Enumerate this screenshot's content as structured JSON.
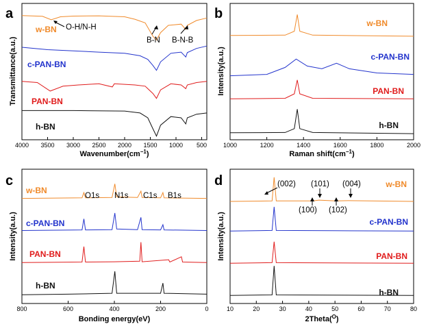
{
  "colors": {
    "w-BN": "#f08a2a",
    "c-PAN-BN": "#2233cc",
    "PAN-BN": "#e01b1b",
    "h-BN": "#111111"
  },
  "chart_data": [
    {
      "panel": "a",
      "type": "line",
      "xlabel": "Wavenumber(cm",
      "xlabel_sup": "−1",
      "xlabel_end": ")",
      "ylabel": "Transmittance(a.u.)",
      "xlim": [
        4000,
        400
      ],
      "xticks": [
        4000,
        3500,
        3000,
        2500,
        2000,
        1500,
        1000,
        500
      ],
      "annotations": [
        "O-H/N-H",
        "B-N",
        "B-N-B"
      ],
      "series": [
        {
          "name": "w-BN",
          "offset": 4.25,
          "points": [
            [
              4000,
              0.45
            ],
            [
              3600,
              0.42
            ],
            [
              3430,
              0.28
            ],
            [
              3250,
              0.4
            ],
            [
              3000,
              0.43
            ],
            [
              2500,
              0.44
            ],
            [
              2000,
              0.4
            ],
            [
              1800,
              0.3
            ],
            [
              1600,
              0.15
            ],
            [
              1450,
              -0.4
            ],
            [
              1380,
              -0.55
            ],
            [
              1300,
              -0.25
            ],
            [
              1150,
              0.05
            ],
            [
              900,
              0.1
            ],
            [
              810,
              -0.12
            ],
            [
              780,
              0.05
            ],
            [
              600,
              0.25
            ],
            [
              400,
              0.35
            ]
          ]
        },
        {
          "name": "c-PAN-BN",
          "offset": 3.0,
          "points": [
            [
              4000,
              0.4
            ],
            [
              3500,
              0.3
            ],
            [
              3000,
              0.25
            ],
            [
              2500,
              0.2
            ],
            [
              2000,
              0.15
            ],
            [
              1700,
              0.05
            ],
            [
              1550,
              -0.1
            ],
            [
              1450,
              -0.35
            ],
            [
              1380,
              -0.55
            ],
            [
              1300,
              -0.2
            ],
            [
              1100,
              0.15
            ],
            [
              900,
              0.2
            ],
            [
              810,
              0.0
            ],
            [
              780,
              0.18
            ],
            [
              600,
              0.35
            ],
            [
              400,
              0.45
            ]
          ]
        },
        {
          "name": "PAN-BN",
          "offset": 1.85,
          "points": [
            [
              4000,
              0.15
            ],
            [
              3700,
              0.1
            ],
            [
              3450,
              -0.25
            ],
            [
              3200,
              -0.05
            ],
            [
              2900,
              0.0
            ],
            [
              2500,
              0.05
            ],
            [
              2240,
              -0.08
            ],
            [
              2200,
              0.05
            ],
            [
              1800,
              0.0
            ],
            [
              1600,
              -0.05
            ],
            [
              1450,
              -0.35
            ],
            [
              1380,
              -0.55
            ],
            [
              1300,
              -0.2
            ],
            [
              1100,
              0.05
            ],
            [
              900,
              0.0
            ],
            [
              810,
              -0.15
            ],
            [
              780,
              0.0
            ],
            [
              600,
              0.1
            ],
            [
              400,
              0.15
            ]
          ]
        },
        {
          "name": "h-BN",
          "offset": 0.6,
          "points": [
            [
              4000,
              0.2
            ],
            [
              3000,
              0.2
            ],
            [
              2000,
              0.18
            ],
            [
              1700,
              0.1
            ],
            [
              1550,
              -0.1
            ],
            [
              1450,
              -0.55
            ],
            [
              1380,
              -0.85
            ],
            [
              1300,
              -0.4
            ],
            [
              1100,
              -0.05
            ],
            [
              900,
              -0.1
            ],
            [
              810,
              -0.35
            ],
            [
              780,
              -0.1
            ],
            [
              600,
              0.05
            ],
            [
              400,
              0.1
            ]
          ]
        }
      ]
    },
    {
      "panel": "b",
      "type": "line",
      "xlabel": "Raman shift(cm",
      "xlabel_sup": "−1",
      "xlabel_end": ")",
      "ylabel": "Intensity(a.u.)",
      "xlim": [
        1000,
        2000
      ],
      "xticks": [
        1000,
        1200,
        1400,
        1600,
        1800,
        2000
      ],
      "series": [
        {
          "name": "w-BN",
          "offset": 3.6,
          "points": [
            [
              1000,
              0.05
            ],
            [
              1300,
              0.06
            ],
            [
              1350,
              0.2
            ],
            [
              1366,
              0.8
            ],
            [
              1380,
              0.2
            ],
            [
              1450,
              0.06
            ],
            [
              2000,
              0.02
            ]
          ]
        },
        {
          "name": "c-PAN-BN",
          "offset": 2.2,
          "points": [
            [
              1000,
              0.0
            ],
            [
              1200,
              0.05
            ],
            [
              1300,
              0.3
            ],
            [
              1360,
              0.6
            ],
            [
              1420,
              0.35
            ],
            [
              1500,
              0.25
            ],
            [
              1580,
              0.45
            ],
            [
              1650,
              0.25
            ],
            [
              1800,
              0.1
            ],
            [
              2000,
              0.05
            ]
          ]
        },
        {
          "name": "PAN-BN",
          "offset": 1.35,
          "points": [
            [
              1000,
              0.02
            ],
            [
              1300,
              0.04
            ],
            [
              1350,
              0.2
            ],
            [
              1366,
              0.7
            ],
            [
              1380,
              0.2
            ],
            [
              1450,
              0.04
            ],
            [
              2000,
              0.02
            ]
          ]
        },
        {
          "name": "h-BN",
          "offset": 0.1,
          "points": [
            [
              1000,
              0.05
            ],
            [
              1300,
              0.06
            ],
            [
              1350,
              0.2
            ],
            [
              1366,
              0.9
            ],
            [
              1380,
              0.2
            ],
            [
              1450,
              0.06
            ],
            [
              2000,
              0.02
            ]
          ]
        }
      ]
    },
    {
      "panel": "c",
      "type": "line",
      "xlabel": "Bonding energy(eV)",
      "ylabel": "Intensity(a.u.)",
      "xlim": [
        800,
        0
      ],
      "xticks": [
        800,
        600,
        400,
        200,
        0
      ],
      "annotations": [
        "O1s",
        "N1s",
        "C1s",
        "B1s"
      ],
      "series": [
        {
          "name": "w-BN",
          "offset": 3.4,
          "points": [
            [
              800,
              0.0
            ],
            [
              540,
              0.02
            ],
            [
              532,
              0.2
            ],
            [
              525,
              0.02
            ],
            [
              410,
              0.03
            ],
            [
              398,
              0.5
            ],
            [
              390,
              0.05
            ],
            [
              300,
              0.03
            ],
            [
              285,
              0.25
            ],
            [
              280,
              0.03
            ],
            [
              200,
              0.02
            ],
            [
              190,
              0.2
            ],
            [
              185,
              0.02
            ],
            [
              0,
              0.0
            ]
          ]
        },
        {
          "name": "c-PAN-BN",
          "offset": 2.3,
          "points": [
            [
              800,
              0.0
            ],
            [
              540,
              0.02
            ],
            [
              532,
              0.4
            ],
            [
              525,
              0.02
            ],
            [
              410,
              0.03
            ],
            [
              398,
              0.6
            ],
            [
              390,
              0.05
            ],
            [
              300,
              0.03
            ],
            [
              285,
              0.45
            ],
            [
              280,
              0.03
            ],
            [
              200,
              0.02
            ],
            [
              190,
              0.2
            ],
            [
              185,
              0.02
            ],
            [
              0,
              0.0
            ]
          ]
        },
        {
          "name": "PAN-BN",
          "offset": 1.2,
          "points": [
            [
              800,
              0.0
            ],
            [
              540,
              0.02
            ],
            [
              532,
              0.55
            ],
            [
              525,
              0.02
            ],
            [
              400,
              0.03
            ],
            [
              290,
              0.05
            ],
            [
              285,
              0.7
            ],
            [
              280,
              0.03
            ],
            [
              165,
              0.1
            ],
            [
              160,
              0.02
            ],
            [
              110,
              0.2
            ],
            [
              105,
              0.02
            ],
            [
              0,
              0.0
            ]
          ]
        },
        {
          "name": "h-BN",
          "offset": 0.1,
          "points": [
            [
              800,
              0.0
            ],
            [
              600,
              0.02
            ],
            [
              410,
              0.05
            ],
            [
              398,
              0.8
            ],
            [
              390,
              0.05
            ],
            [
              200,
              0.05
            ],
            [
              190,
              0.4
            ],
            [
              185,
              0.05
            ],
            [
              0,
              0.02
            ]
          ]
        }
      ]
    },
    {
      "panel": "d",
      "type": "line",
      "xlabel": "2Theta(",
      "xlabel_sup": "O",
      "xlabel_end": ")",
      "ylabel": "Intensity(a.u.)",
      "xlim": [
        10,
        80
      ],
      "xticks": [
        10,
        20,
        30,
        40,
        50,
        60,
        70,
        80
      ],
      "annotations": [
        "(002)",
        "(101)",
        "(004)",
        "(100)",
        "(102)"
      ],
      "series": [
        {
          "name": "w-BN",
          "offset": 3.6,
          "points": [
            [
              10,
              0.0
            ],
            [
              26,
              0.02
            ],
            [
              26.8,
              0.9
            ],
            [
              27.6,
              0.02
            ],
            [
              41.6,
              0.02
            ],
            [
              43.9,
              0.05
            ],
            [
              50.2,
              0.02
            ],
            [
              55.2,
              0.03
            ],
            [
              80,
              0.0
            ]
          ]
        },
        {
          "name": "c-PAN-BN",
          "offset": 2.5,
          "points": [
            [
              10,
              0.0
            ],
            [
              26,
              0.02
            ],
            [
              26.8,
              0.9
            ],
            [
              27.6,
              0.02
            ],
            [
              50,
              0.01
            ],
            [
              80,
              0.0
            ]
          ]
        },
        {
          "name": "PAN-BN",
          "offset": 1.3,
          "points": [
            [
              10,
              0.0
            ],
            [
              26,
              0.02
            ],
            [
              26.8,
              0.8
            ],
            [
              27.6,
              0.02
            ],
            [
              80,
              0.0
            ]
          ]
        },
        {
          "name": "h-BN",
          "offset": 0.1,
          "points": [
            [
              10,
              0.0
            ],
            [
              26,
              0.02
            ],
            [
              26.8,
              1.1
            ],
            [
              27.6,
              0.02
            ],
            [
              80,
              0.0
            ]
          ]
        }
      ]
    }
  ]
}
